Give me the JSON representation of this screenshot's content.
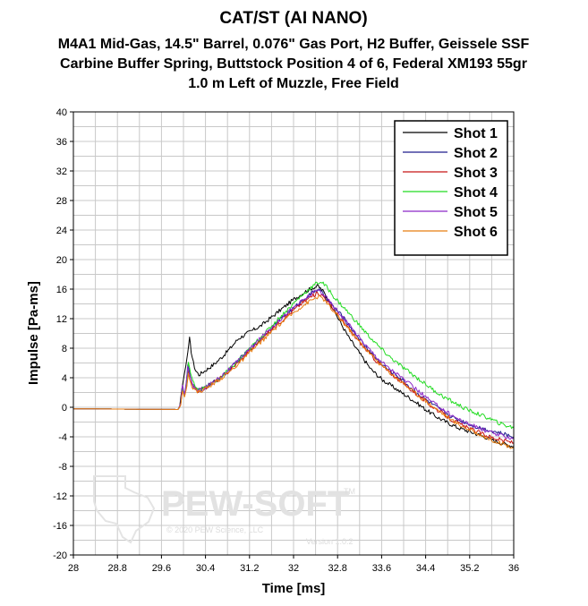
{
  "chart_data": {
    "type": "line",
    "title": "CAT/ST (AI NANO)",
    "subtitle_lines": [
      "M4A1 Mid-Gas, 14.5\" Barrel, 0.076\" Gas Port, H2 Buffer, Geissele SSF",
      "Carbine Buffer Spring, Buttstock Position 4 of 6, Federal XM193 55gr",
      "1.0 m Left of Muzzle, Free Field"
    ],
    "xlabel": "Time [ms]",
    "ylabel": "Impulse [Pa-ms]",
    "xlim": [
      28,
      36
    ],
    "ylim": [
      -20,
      40
    ],
    "xticks": [
      "28",
      "28.8",
      "29.6",
      "30.4",
      "31.2",
      "32",
      "32.8",
      "33.6",
      "34.4",
      "35.2",
      "36"
    ],
    "yticks": [
      "-20",
      "-16",
      "-12",
      "-8",
      "-4",
      "0",
      "4",
      "8",
      "12",
      "16",
      "20",
      "24",
      "28",
      "32",
      "36",
      "40"
    ],
    "grid": true,
    "legend_position": "top-right",
    "series": [
      {
        "name": "Shot 1",
        "color": "#000000",
        "points": [
          [
            28.0,
            -0.2
          ],
          [
            29.9,
            -0.3
          ],
          [
            29.93,
            0.0
          ],
          [
            29.97,
            2.5
          ],
          [
            30.0,
            3.8
          ],
          [
            30.04,
            5.5
          ],
          [
            30.08,
            7.5
          ],
          [
            30.11,
            9.3
          ],
          [
            30.14,
            7.6
          ],
          [
            30.18,
            6.0
          ],
          [
            30.22,
            5.0
          ],
          [
            30.28,
            4.4
          ],
          [
            30.4,
            5.0
          ],
          [
            30.55,
            5.8
          ],
          [
            30.7,
            6.8
          ],
          [
            30.85,
            8.0
          ],
          [
            31.0,
            9.3
          ],
          [
            31.2,
            10.2
          ],
          [
            31.4,
            11.0
          ],
          [
            31.6,
            12.2
          ],
          [
            31.8,
            13.4
          ],
          [
            32.0,
            14.6
          ],
          [
            32.2,
            15.6
          ],
          [
            32.35,
            16.2
          ],
          [
            32.45,
            16.4
          ],
          [
            32.55,
            15.6
          ],
          [
            32.7,
            13.6
          ],
          [
            32.85,
            11.5
          ],
          [
            33.0,
            9.5
          ],
          [
            33.2,
            7.3
          ],
          [
            33.4,
            5.2
          ],
          [
            33.6,
            3.8
          ],
          [
            33.8,
            2.8
          ],
          [
            34.0,
            1.8
          ],
          [
            34.2,
            0.8
          ],
          [
            34.4,
            -0.3
          ],
          [
            34.6,
            -1.3
          ],
          [
            34.8,
            -2.1
          ],
          [
            35.0,
            -2.8
          ],
          [
            35.2,
            -3.3
          ],
          [
            35.4,
            -3.8
          ],
          [
            35.6,
            -4.4
          ],
          [
            35.8,
            -4.9
          ],
          [
            36.0,
            -5.3
          ]
        ]
      },
      {
        "name": "Shot 2",
        "color": "#1e1c8c",
        "points": [
          [
            28.0,
            -0.2
          ],
          [
            29.9,
            -0.3
          ],
          [
            29.95,
            0.5
          ],
          [
            29.98,
            2.8
          ],
          [
            30.02,
            1.6
          ],
          [
            30.05,
            3.2
          ],
          [
            30.08,
            5.8
          ],
          [
            30.12,
            4.5
          ],
          [
            30.15,
            3.4
          ],
          [
            30.22,
            2.6
          ],
          [
            30.3,
            2.3
          ],
          [
            30.4,
            2.8
          ],
          [
            30.6,
            3.6
          ],
          [
            30.8,
            4.8
          ],
          [
            31.0,
            6.4
          ],
          [
            31.2,
            7.8
          ],
          [
            31.4,
            9.2
          ],
          [
            31.6,
            10.8
          ],
          [
            31.8,
            12.2
          ],
          [
            32.0,
            13.4
          ],
          [
            32.2,
            14.7
          ],
          [
            32.35,
            15.6
          ],
          [
            32.45,
            16.0
          ],
          [
            32.55,
            15.2
          ],
          [
            32.7,
            13.8
          ],
          [
            32.9,
            12.2
          ],
          [
            33.1,
            10.2
          ],
          [
            33.3,
            8.3
          ],
          [
            33.5,
            6.6
          ],
          [
            33.7,
            5.2
          ],
          [
            33.9,
            4.2
          ],
          [
            34.1,
            2.8
          ],
          [
            34.3,
            1.6
          ],
          [
            34.5,
            0.5
          ],
          [
            34.7,
            -0.5
          ],
          [
            34.9,
            -1.4
          ],
          [
            35.1,
            -2.0
          ],
          [
            35.3,
            -2.6
          ],
          [
            35.5,
            -3.0
          ],
          [
            35.7,
            -3.4
          ],
          [
            36.0,
            -4.0
          ]
        ]
      },
      {
        "name": "Shot 3",
        "color": "#c81414",
        "points": [
          [
            28.0,
            -0.2
          ],
          [
            29.9,
            -0.3
          ],
          [
            29.95,
            0.3
          ],
          [
            29.98,
            2.4
          ],
          [
            30.02,
            1.5
          ],
          [
            30.06,
            2.9
          ],
          [
            30.09,
            5.0
          ],
          [
            30.13,
            3.7
          ],
          [
            30.17,
            2.8
          ],
          [
            30.25,
            2.2
          ],
          [
            30.35,
            2.4
          ],
          [
            30.5,
            3.1
          ],
          [
            30.7,
            4.1
          ],
          [
            30.9,
            5.4
          ],
          [
            31.1,
            6.9
          ],
          [
            31.3,
            8.4
          ],
          [
            31.5,
            9.8
          ],
          [
            31.7,
            11.2
          ],
          [
            31.9,
            12.5
          ],
          [
            32.1,
            13.8
          ],
          [
            32.3,
            14.9
          ],
          [
            32.45,
            15.5
          ],
          [
            32.55,
            15.0
          ],
          [
            32.7,
            13.5
          ],
          [
            32.9,
            11.6
          ],
          [
            33.1,
            9.7
          ],
          [
            33.3,
            8.0
          ],
          [
            33.5,
            6.3
          ],
          [
            33.7,
            5.0
          ],
          [
            33.9,
            3.8
          ],
          [
            34.1,
            2.6
          ],
          [
            34.3,
            1.4
          ],
          [
            34.5,
            0.2
          ],
          [
            34.7,
            -0.8
          ],
          [
            34.9,
            -1.8
          ],
          [
            35.1,
            -2.6
          ],
          [
            35.3,
            -3.2
          ],
          [
            35.5,
            -3.8
          ],
          [
            35.7,
            -4.3
          ],
          [
            36.0,
            -4.8
          ]
        ]
      },
      {
        "name": "Shot 4",
        "color": "#22dc22",
        "points": [
          [
            28.0,
            -0.2
          ],
          [
            29.9,
            -0.3
          ],
          [
            29.95,
            0.4
          ],
          [
            29.98,
            2.6
          ],
          [
            30.02,
            1.6
          ],
          [
            30.06,
            3.4
          ],
          [
            30.09,
            6.1
          ],
          [
            30.13,
            4.6
          ],
          [
            30.17,
            3.4
          ],
          [
            30.25,
            2.6
          ],
          [
            30.35,
            2.5
          ],
          [
            30.5,
            3.1
          ],
          [
            30.7,
            4.2
          ],
          [
            30.9,
            5.6
          ],
          [
            31.1,
            7.1
          ],
          [
            31.3,
            8.7
          ],
          [
            31.5,
            10.2
          ],
          [
            31.7,
            11.8
          ],
          [
            31.9,
            13.3
          ],
          [
            32.1,
            14.8
          ],
          [
            32.3,
            16.1
          ],
          [
            32.42,
            16.8
          ],
          [
            32.5,
            17.0
          ],
          [
            32.6,
            16.3
          ],
          [
            32.75,
            14.8
          ],
          [
            32.95,
            13.2
          ],
          [
            33.15,
            11.5
          ],
          [
            33.35,
            9.8
          ],
          [
            33.55,
            8.2
          ],
          [
            33.75,
            6.8
          ],
          [
            33.95,
            5.6
          ],
          [
            34.15,
            4.5
          ],
          [
            34.35,
            3.4
          ],
          [
            34.55,
            2.3
          ],
          [
            34.75,
            1.3
          ],
          [
            34.95,
            0.5
          ],
          [
            35.15,
            -0.3
          ],
          [
            35.35,
            -0.9
          ],
          [
            35.55,
            -1.5
          ],
          [
            35.75,
            -2.2
          ],
          [
            36.0,
            -2.8
          ]
        ]
      },
      {
        "name": "Shot 5",
        "color": "#8c28c8",
        "points": [
          [
            28.0,
            -0.2
          ],
          [
            29.9,
            -0.3
          ],
          [
            29.95,
            0.5
          ],
          [
            29.98,
            3.0
          ],
          [
            30.02,
            1.7
          ],
          [
            30.05,
            3.4
          ],
          [
            30.08,
            5.5
          ],
          [
            30.12,
            4.0
          ],
          [
            30.16,
            3.0
          ],
          [
            30.24,
            2.3
          ],
          [
            30.34,
            2.4
          ],
          [
            30.5,
            3.2
          ],
          [
            30.7,
            4.3
          ],
          [
            30.9,
            5.6
          ],
          [
            31.1,
            7.1
          ],
          [
            31.3,
            8.6
          ],
          [
            31.5,
            10.1
          ],
          [
            31.7,
            11.5
          ],
          [
            31.9,
            12.9
          ],
          [
            32.1,
            14.1
          ],
          [
            32.3,
            15.2
          ],
          [
            32.45,
            15.9
          ],
          [
            32.55,
            15.3
          ],
          [
            32.7,
            13.9
          ],
          [
            32.9,
            12.2
          ],
          [
            33.1,
            10.3
          ],
          [
            33.3,
            8.5
          ],
          [
            33.5,
            6.9
          ],
          [
            33.7,
            5.5
          ],
          [
            33.9,
            4.4
          ],
          [
            34.1,
            3.2
          ],
          [
            34.3,
            2.0
          ],
          [
            34.5,
            0.8
          ],
          [
            34.7,
            -0.2
          ],
          [
            34.9,
            -1.2
          ],
          [
            35.1,
            -2.0
          ],
          [
            35.3,
            -2.6
          ],
          [
            35.5,
            -3.2
          ],
          [
            35.7,
            -3.7
          ],
          [
            36.0,
            -4.2
          ]
        ]
      },
      {
        "name": "Shot 6",
        "color": "#e87e10",
        "points": [
          [
            28.0,
            -0.2
          ],
          [
            29.9,
            -0.3
          ],
          [
            29.95,
            0.3
          ],
          [
            29.98,
            2.2
          ],
          [
            30.02,
            1.4
          ],
          [
            30.06,
            2.8
          ],
          [
            30.09,
            4.6
          ],
          [
            30.13,
            3.4
          ],
          [
            30.17,
            2.6
          ],
          [
            30.25,
            2.1
          ],
          [
            30.35,
            2.3
          ],
          [
            30.5,
            3.0
          ],
          [
            30.7,
            4.0
          ],
          [
            30.9,
            5.2
          ],
          [
            31.1,
            6.6
          ],
          [
            31.3,
            8.1
          ],
          [
            31.5,
            9.5
          ],
          [
            31.7,
            10.9
          ],
          [
            31.9,
            12.2
          ],
          [
            32.1,
            13.4
          ],
          [
            32.3,
            14.4
          ],
          [
            32.45,
            15.0
          ],
          [
            32.55,
            14.6
          ],
          [
            32.7,
            13.2
          ],
          [
            32.9,
            11.5
          ],
          [
            33.1,
            9.7
          ],
          [
            33.3,
            8.0
          ],
          [
            33.5,
            6.4
          ],
          [
            33.7,
            5.0
          ],
          [
            33.9,
            3.8
          ],
          [
            34.1,
            2.6
          ],
          [
            34.3,
            1.4
          ],
          [
            34.5,
            0.3
          ],
          [
            34.7,
            -0.8
          ],
          [
            34.9,
            -1.9
          ],
          [
            35.1,
            -2.7
          ],
          [
            35.3,
            -3.4
          ],
          [
            35.5,
            -4.1
          ],
          [
            35.7,
            -4.7
          ],
          [
            36.0,
            -5.5
          ]
        ]
      }
    ]
  },
  "watermark": {
    "brand": "PEW-SOFT",
    "trademark": "TM",
    "copyright": "© 2020 PEW Science, LLC",
    "version": "Version 1.0.2"
  }
}
